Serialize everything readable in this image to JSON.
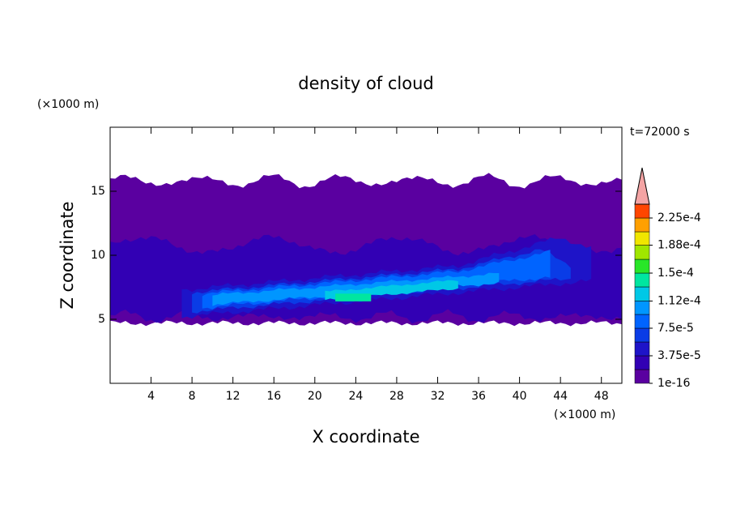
{
  "chart_data": {
    "type": "contour",
    "title": "density of cloud",
    "time_label": "t=72000 s",
    "x_label": "X coordinate",
    "y_label": "Z coordinate",
    "x_unit": "(×1000 m)",
    "y_unit": "(×1000 m)",
    "xlim": [
      0,
      50
    ],
    "ylim": [
      0,
      20
    ],
    "xticks": [
      4,
      8,
      12,
      16,
      20,
      24,
      28,
      32,
      36,
      40,
      44,
      48
    ],
    "yticks": [
      5,
      10,
      15
    ],
    "levels": [
      1e-16,
      1.875e-05,
      3.75e-05,
      5.625e-05,
      7.5e-05,
      9.375e-05,
      0.000112,
      0.00013125,
      0.00015,
      0.00016875,
      0.000188,
      0.00020625,
      0.000225,
      0.00024375
    ],
    "colors": [
      "#5a00a0",
      "#3200b4",
      "#1e14c8",
      "#0a3ce6",
      "#0064ff",
      "#0096ff",
      "#00c8e6",
      "#00e6a0",
      "#28e628",
      "#a0e600",
      "#f0e600",
      "#ffa000",
      "#ff4600"
    ],
    "over_color": "#f4a4a4",
    "colorbar_ticks": [
      {
        "value": 1e-16,
        "label": "1e-16"
      },
      {
        "value": 3.75e-05,
        "label": "3.75e-5"
      },
      {
        "value": 7.5e-05,
        "label": "7.5e-5"
      },
      {
        "value": 0.000112,
        "label": "1.12e-4"
      },
      {
        "value": 0.00015,
        "label": "1.5e-4"
      },
      {
        "value": 0.000188,
        "label": "1.88e-4"
      },
      {
        "value": 0.000225,
        "label": "2.25e-4"
      }
    ]
  }
}
